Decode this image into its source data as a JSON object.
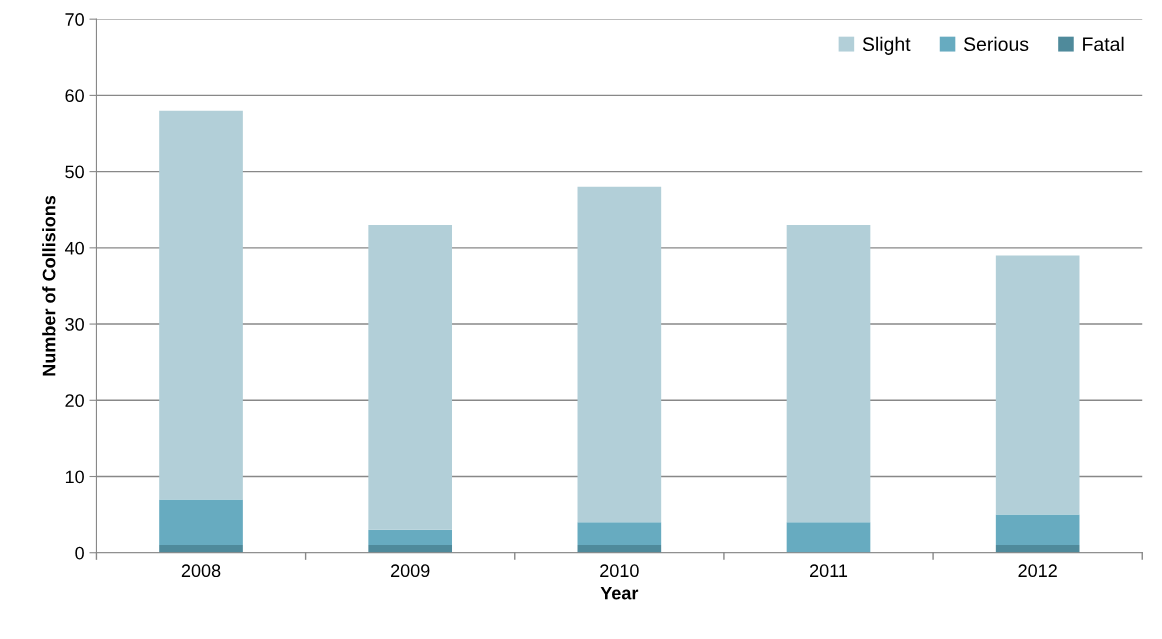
{
  "chart_data": {
    "type": "bar",
    "stacked": true,
    "xlabel": "Year",
    "ylabel": "Number of Collisions",
    "categories": [
      "2008",
      "2009",
      "2010",
      "2011",
      "2012"
    ],
    "series": [
      {
        "name": "Fatal",
        "color": "#4f8a9b",
        "values": [
          1,
          1,
          1,
          0,
          1
        ]
      },
      {
        "name": "Serious",
        "color": "#67abc0",
        "values": [
          6,
          2,
          3,
          4,
          4
        ]
      },
      {
        "name": "Slight",
        "color": "#b2cfd8",
        "values": [
          51,
          40,
          44,
          39,
          34
        ]
      }
    ],
    "ylim": [
      0,
      70
    ],
    "yticks": [
      0,
      10,
      20,
      30,
      40,
      50,
      60,
      70
    ],
    "grid": "y",
    "legend": "top right"
  }
}
